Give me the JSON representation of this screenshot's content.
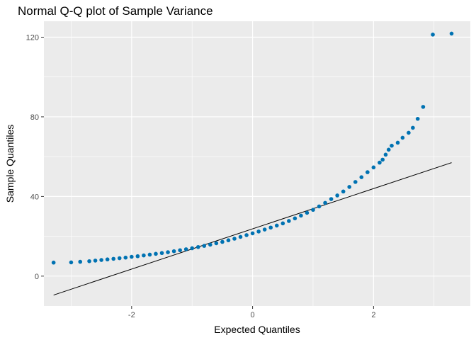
{
  "chart_data": {
    "type": "scatter",
    "title": "Normal Q-Q plot of Sample Variance",
    "xlabel": "Expected Quantiles",
    "ylabel": "Sample Quantiles",
    "xlim": [
      -3.45,
      3.6
    ],
    "ylim": [
      -15,
      128
    ],
    "x_ticks": [
      -2,
      0,
      2
    ],
    "y_ticks": [
      0,
      40,
      80,
      120
    ],
    "grid": true,
    "point_color": "#0072B2",
    "line_color": "#000000",
    "reference_line": {
      "x": [
        -3.29,
        3.29
      ],
      "y": [
        -9.5,
        57
      ]
    },
    "points": [
      [
        -3.29,
        6.8
      ],
      [
        -3.0,
        6.9
      ],
      [
        -2.85,
        7.2
      ],
      [
        -2.7,
        7.5
      ],
      [
        -2.6,
        7.8
      ],
      [
        -2.5,
        8.1
      ],
      [
        -2.4,
        8.4
      ],
      [
        -2.3,
        8.7
      ],
      [
        -2.2,
        9.0
      ],
      [
        -2.1,
        9.3
      ],
      [
        -2.0,
        9.7
      ],
      [
        -1.9,
        10.0
      ],
      [
        -1.8,
        10.4
      ],
      [
        -1.7,
        10.8
      ],
      [
        -1.6,
        11.2
      ],
      [
        -1.5,
        11.6
      ],
      [
        -1.4,
        12.0
      ],
      [
        -1.3,
        12.5
      ],
      [
        -1.2,
        13.0
      ],
      [
        -1.1,
        13.5
      ],
      [
        -1.0,
        14.0
      ],
      [
        -0.9,
        14.6
      ],
      [
        -0.8,
        15.2
      ],
      [
        -0.7,
        15.8
      ],
      [
        -0.6,
        16.5
      ],
      [
        -0.5,
        17.2
      ],
      [
        -0.4,
        18.0
      ],
      [
        -0.3,
        18.8
      ],
      [
        -0.2,
        19.7
      ],
      [
        -0.1,
        20.6
      ],
      [
        0.0,
        21.5
      ],
      [
        0.1,
        22.4
      ],
      [
        0.2,
        23.4
      ],
      [
        0.3,
        24.4
      ],
      [
        0.4,
        25.4
      ],
      [
        0.5,
        26.5
      ],
      [
        0.6,
        27.7
      ],
      [
        0.7,
        29.0
      ],
      [
        0.8,
        30.4
      ],
      [
        0.9,
        31.8
      ],
      [
        1.0,
        33.3
      ],
      [
        1.1,
        35.0
      ],
      [
        1.2,
        36.8
      ],
      [
        1.3,
        38.7
      ],
      [
        1.4,
        40.5
      ],
      [
        1.5,
        42.5
      ],
      [
        1.6,
        44.8
      ],
      [
        1.7,
        47.3
      ],
      [
        1.8,
        49.7
      ],
      [
        1.9,
        52.2
      ],
      [
        2.0,
        54.6
      ],
      [
        2.1,
        57.0
      ],
      [
        2.15,
        58.5
      ],
      [
        2.2,
        61.0
      ],
      [
        2.25,
        63.5
      ],
      [
        2.3,
        65.5
      ],
      [
        2.4,
        67.0
      ],
      [
        2.48,
        69.5
      ],
      [
        2.58,
        72.0
      ],
      [
        2.65,
        74.5
      ],
      [
        2.73,
        79.0
      ],
      [
        2.82,
        85.0
      ],
      [
        2.98,
        121.3
      ],
      [
        3.29,
        121.8
      ]
    ]
  }
}
